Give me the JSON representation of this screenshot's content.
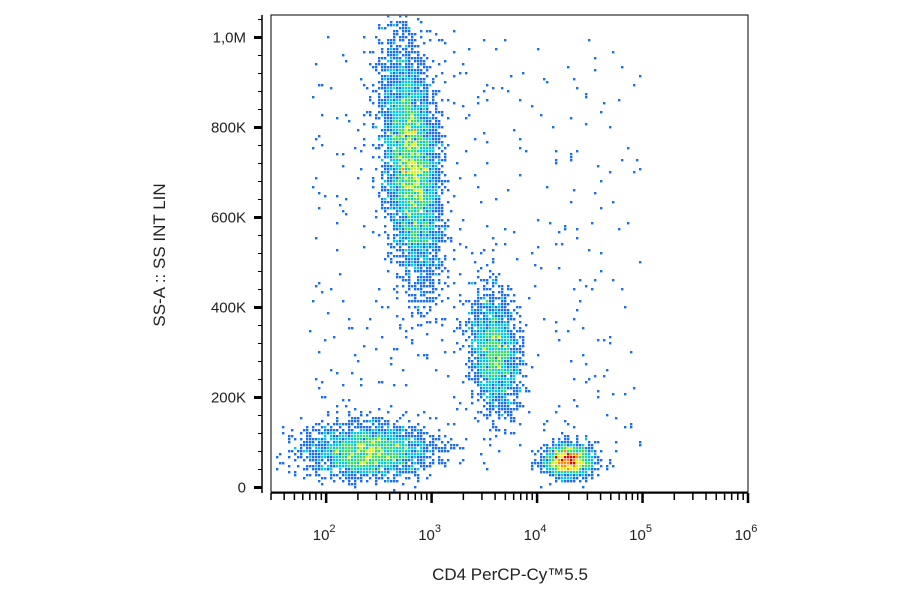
{
  "chart_data": {
    "type": "scatter",
    "style": "flow-cytometry density dot plot",
    "xlabel": "CD4 PerCP-Cy™5.5",
    "ylabel": "SS-A :: SS INT LIN",
    "x_scale": "log",
    "xlim": [
      30,
      1000000
    ],
    "x_ticks": [
      {
        "base": "10",
        "exp": "2",
        "value": 100
      },
      {
        "base": "10",
        "exp": "3",
        "value": 1000
      },
      {
        "base": "10",
        "exp": "4",
        "value": 10000
      },
      {
        "base": "10",
        "exp": "5",
        "value": 100000
      },
      {
        "base": "10",
        "exp": "6",
        "value": 1000000
      }
    ],
    "y_scale": "linear",
    "ylim": [
      -10000,
      1050000
    ],
    "y_ticks": [
      {
        "label": "0",
        "value": 0
      },
      {
        "label": "200K",
        "value": 200000
      },
      {
        "label": "400K",
        "value": 400000
      },
      {
        "label": "600K",
        "value": 600000
      },
      {
        "label": "800K",
        "value": 800000
      },
      {
        "label": "1,0M",
        "value": 1000000
      }
    ],
    "colormap": [
      "#2020c8",
      "#1a6cf0",
      "#00c8e6",
      "#3cdc64",
      "#dcf01e",
      "#ff8c00",
      "#e60000"
    ],
    "populations": [
      {
        "x_center": 250,
        "y_center": 80000,
        "count": 2600
      },
      {
        "x_center": 650,
        "y_center": 720000,
        "count": 5200
      },
      {
        "x_center": 4000,
        "y_center": 300000,
        "count": 1900
      },
      {
        "x_center": 20000,
        "y_center": 60000,
        "count": 1500
      }
    ],
    "grid": false
  }
}
